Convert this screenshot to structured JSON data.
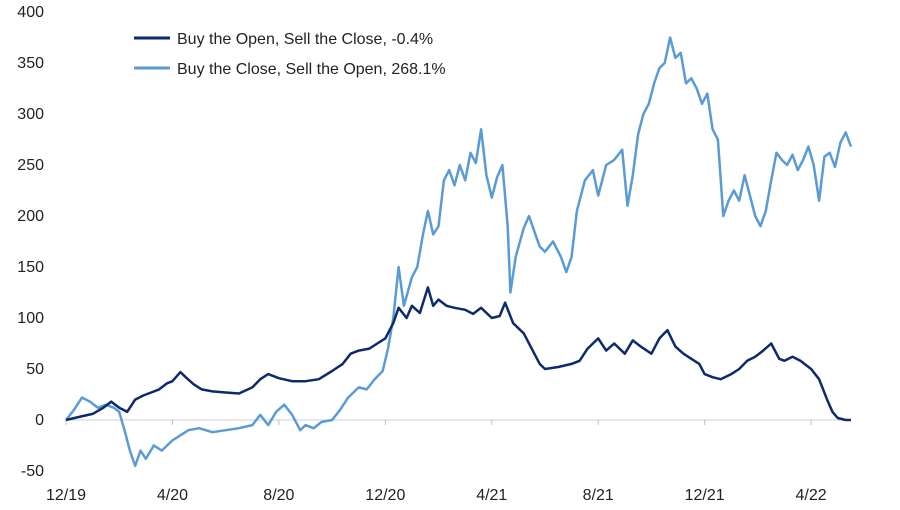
{
  "chart_data": {
    "type": "line",
    "title": "",
    "xlabel": "",
    "ylabel": "",
    "ylim": [
      -50,
      400
    ],
    "yticks": [
      -50,
      0,
      50,
      100,
      150,
      200,
      250,
      300,
      350,
      400
    ],
    "xlim": [
      0,
      29.5
    ],
    "x_unit": "months since 12/19",
    "xticks": [
      {
        "pos": 0,
        "label": "12/19"
      },
      {
        "pos": 4,
        "label": "4/20"
      },
      {
        "pos": 8,
        "label": "8/20"
      },
      {
        "pos": 12,
        "label": "12/20"
      },
      {
        "pos": 16,
        "label": "4/21"
      },
      {
        "pos": 20,
        "label": "8/21"
      },
      {
        "pos": 24,
        "label": "12/21"
      },
      {
        "pos": 28,
        "label": "4/22"
      }
    ],
    "grid": false,
    "legend_position": "top-left",
    "series": [
      {
        "name": "Buy the Open, Sell the Close, -0.4%",
        "color": "#0d2a6b",
        "points": [
          [
            0,
            0
          ],
          [
            0.5,
            3
          ],
          [
            1,
            6
          ],
          [
            1.4,
            12
          ],
          [
            1.7,
            18
          ],
          [
            2,
            12
          ],
          [
            2.3,
            8
          ],
          [
            2.6,
            20
          ],
          [
            2.9,
            24
          ],
          [
            3.2,
            27
          ],
          [
            3.5,
            30
          ],
          [
            3.8,
            36
          ],
          [
            4,
            38
          ],
          [
            4.3,
            47
          ],
          [
            4.5,
            42
          ],
          [
            4.8,
            35
          ],
          [
            5.1,
            30
          ],
          [
            5.5,
            28
          ],
          [
            6,
            27
          ],
          [
            6.5,
            26
          ],
          [
            7,
            32
          ],
          [
            7.3,
            40
          ],
          [
            7.6,
            45
          ],
          [
            8,
            41
          ],
          [
            8.5,
            38
          ],
          [
            9,
            38
          ],
          [
            9.5,
            40
          ],
          [
            10,
            48
          ],
          [
            10.4,
            55
          ],
          [
            10.7,
            65
          ],
          [
            11,
            68
          ],
          [
            11.4,
            70
          ],
          [
            11.7,
            75
          ],
          [
            12,
            80
          ],
          [
            12.3,
            95
          ],
          [
            12.5,
            110
          ],
          [
            12.8,
            100
          ],
          [
            13,
            112
          ],
          [
            13.3,
            105
          ],
          [
            13.6,
            130
          ],
          [
            13.8,
            112
          ],
          [
            14,
            118
          ],
          [
            14.3,
            112
          ],
          [
            14.6,
            110
          ],
          [
            15,
            108
          ],
          [
            15.3,
            104
          ],
          [
            15.6,
            110
          ],
          [
            16,
            100
          ],
          [
            16.3,
            102
          ],
          [
            16.5,
            115
          ],
          [
            16.8,
            95
          ],
          [
            17.2,
            85
          ],
          [
            17.5,
            70
          ],
          [
            17.8,
            55
          ],
          [
            18,
            50
          ],
          [
            18.5,
            52
          ],
          [
            19,
            55
          ],
          [
            19.3,
            58
          ],
          [
            19.6,
            70
          ],
          [
            20,
            80
          ],
          [
            20.3,
            68
          ],
          [
            20.6,
            75
          ],
          [
            21,
            65
          ],
          [
            21.3,
            78
          ],
          [
            21.6,
            72
          ],
          [
            22,
            65
          ],
          [
            22.3,
            80
          ],
          [
            22.6,
            88
          ],
          [
            22.9,
            72
          ],
          [
            23.2,
            65
          ],
          [
            23.5,
            60
          ],
          [
            23.8,
            55
          ],
          [
            24,
            45
          ],
          [
            24.3,
            42
          ],
          [
            24.6,
            40
          ],
          [
            25,
            45
          ],
          [
            25.3,
            50
          ],
          [
            25.6,
            58
          ],
          [
            25.9,
            62
          ],
          [
            26.2,
            68
          ],
          [
            26.5,
            75
          ],
          [
            26.8,
            60
          ],
          [
            27,
            58
          ],
          [
            27.3,
            62
          ],
          [
            27.6,
            58
          ],
          [
            28,
            50
          ],
          [
            28.3,
            40
          ],
          [
            28.6,
            20
          ],
          [
            28.8,
            8
          ],
          [
            29,
            2
          ],
          [
            29.3,
            0
          ],
          [
            29.5,
            0
          ]
        ]
      },
      {
        "name": "Buy the Close, Sell the Open, 268.1%",
        "color": "#5b9bd5",
        "points": [
          [
            0,
            0
          ],
          [
            0.3,
            10
          ],
          [
            0.6,
            22
          ],
          [
            0.9,
            18
          ],
          [
            1.2,
            12
          ],
          [
            1.5,
            15
          ],
          [
            1.8,
            12
          ],
          [
            2,
            8
          ],
          [
            2.2,
            -10
          ],
          [
            2.4,
            -30
          ],
          [
            2.6,
            -45
          ],
          [
            2.8,
            -30
          ],
          [
            3,
            -38
          ],
          [
            3.3,
            -25
          ],
          [
            3.6,
            -30
          ],
          [
            4,
            -20
          ],
          [
            4.3,
            -15
          ],
          [
            4.6,
            -10
          ],
          [
            5,
            -8
          ],
          [
            5.5,
            -12
          ],
          [
            6,
            -10
          ],
          [
            6.5,
            -8
          ],
          [
            7,
            -5
          ],
          [
            7.3,
            5
          ],
          [
            7.6,
            -5
          ],
          [
            7.9,
            8
          ],
          [
            8.2,
            15
          ],
          [
            8.5,
            5
          ],
          [
            8.8,
            -10
          ],
          [
            9,
            -5
          ],
          [
            9.3,
            -8
          ],
          [
            9.6,
            -2
          ],
          [
            10,
            0
          ],
          [
            10.3,
            10
          ],
          [
            10.6,
            22
          ],
          [
            11,
            32
          ],
          [
            11.3,
            30
          ],
          [
            11.6,
            40
          ],
          [
            11.9,
            48
          ],
          [
            12.1,
            70
          ],
          [
            12.3,
            100
          ],
          [
            12.5,
            150
          ],
          [
            12.7,
            112
          ],
          [
            13,
            140
          ],
          [
            13.2,
            150
          ],
          [
            13.4,
            180
          ],
          [
            13.6,
            205
          ],
          [
            13.8,
            182
          ],
          [
            14,
            190
          ],
          [
            14.2,
            235
          ],
          [
            14.4,
            245
          ],
          [
            14.6,
            230
          ],
          [
            14.8,
            250
          ],
          [
            15,
            235
          ],
          [
            15.2,
            262
          ],
          [
            15.4,
            252
          ],
          [
            15.6,
            285
          ],
          [
            15.8,
            240
          ],
          [
            16,
            218
          ],
          [
            16.2,
            238
          ],
          [
            16.4,
            250
          ],
          [
            16.6,
            190
          ],
          [
            16.7,
            125
          ],
          [
            16.9,
            160
          ],
          [
            17.2,
            188
          ],
          [
            17.4,
            200
          ],
          [
            17.6,
            185
          ],
          [
            17.8,
            170
          ],
          [
            18,
            165
          ],
          [
            18.3,
            175
          ],
          [
            18.6,
            160
          ],
          [
            18.8,
            145
          ],
          [
            19,
            160
          ],
          [
            19.2,
            205
          ],
          [
            19.5,
            235
          ],
          [
            19.8,
            245
          ],
          [
            20,
            220
          ],
          [
            20.3,
            250
          ],
          [
            20.6,
            255
          ],
          [
            20.9,
            265
          ],
          [
            21.1,
            210
          ],
          [
            21.3,
            240
          ],
          [
            21.5,
            280
          ],
          [
            21.7,
            300
          ],
          [
            21.9,
            310
          ],
          [
            22.1,
            330
          ],
          [
            22.3,
            345
          ],
          [
            22.5,
            350
          ],
          [
            22.7,
            375
          ],
          [
            22.9,
            355
          ],
          [
            23.1,
            360
          ],
          [
            23.3,
            330
          ],
          [
            23.5,
            335
          ],
          [
            23.7,
            325
          ],
          [
            23.9,
            310
          ],
          [
            24.1,
            320
          ],
          [
            24.3,
            285
          ],
          [
            24.5,
            275
          ],
          [
            24.7,
            200
          ],
          [
            24.9,
            215
          ],
          [
            25.1,
            225
          ],
          [
            25.3,
            215
          ],
          [
            25.5,
            240
          ],
          [
            25.7,
            220
          ],
          [
            25.9,
            200
          ],
          [
            26.1,
            190
          ],
          [
            26.3,
            205
          ],
          [
            26.5,
            235
          ],
          [
            26.7,
            262
          ],
          [
            26.9,
            255
          ],
          [
            27.1,
            250
          ],
          [
            27.3,
            260
          ],
          [
            27.5,
            245
          ],
          [
            27.7,
            255
          ],
          [
            27.9,
            268
          ],
          [
            28.1,
            250
          ],
          [
            28.3,
            215
          ],
          [
            28.5,
            258
          ],
          [
            28.7,
            262
          ],
          [
            28.9,
            248
          ],
          [
            29.1,
            272
          ],
          [
            29.3,
            282
          ],
          [
            29.5,
            268
          ]
        ]
      }
    ]
  }
}
